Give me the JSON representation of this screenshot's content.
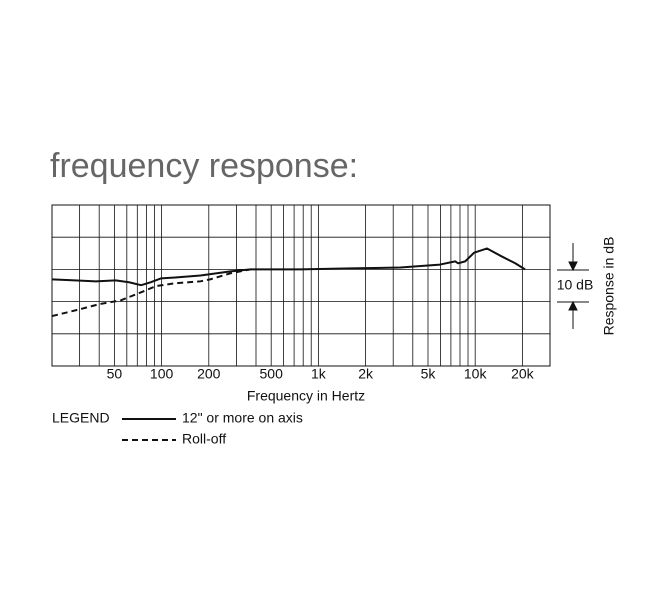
{
  "chart_data": {
    "type": "line",
    "title": "frequency response:",
    "x_label": "Frequency in Hertz",
    "y_label": "Response in dB",
    "scale_annotation": "10 dB",
    "legend_title": "LEGEND",
    "x_scale": "log",
    "grid": true,
    "xlim": [
      20,
      30000
    ],
    "ylim": [
      -30,
      20
    ],
    "xticks": [
      50,
      100,
      200,
      500,
      {
        "value": 1000,
        "label": "1k"
      },
      {
        "value": 2000,
        "label": "2k"
      },
      {
        "value": 5000,
        "label": "5k"
      },
      {
        "value": 10000,
        "label": "10k"
      },
      {
        "value": 20000,
        "label": "20k"
      }
    ],
    "xgrid": [
      30,
      40,
      50,
      60,
      70,
      80,
      90,
      100,
      200,
      300,
      400,
      500,
      600,
      700,
      800,
      900,
      1000,
      2000,
      3000,
      4000,
      5000,
      6000,
      7000,
      8000,
      9000,
      10000,
      20000
    ],
    "ygrid": [
      -20,
      -10,
      0,
      10
    ],
    "series": [
      {
        "name": "12\" or more on axis",
        "color": "#111111",
        "style": "solid",
        "x": [
          20,
          28,
          38,
          51,
          62,
          74,
          85,
          99,
          122,
          177,
          275,
          369,
          767,
          1600,
          3330,
          5960,
          7450,
          7780,
          8630,
          9850,
          11900,
          14400,
          18000,
          20800
        ],
        "values": [
          -3.1,
          -3.4,
          -3.7,
          -3.4,
          -4,
          -4.9,
          -4,
          -2.8,
          -2.5,
          -1.9,
          -0.6,
          0,
          0,
          0.3,
          0.6,
          1.5,
          2.5,
          1.9,
          2.5,
          5.2,
          6.5,
          4.3,
          1.9,
          0
        ]
      },
      {
        "name": "Roll-off",
        "color": "#111111",
        "style": "dashed",
        "x": [
          20,
          30,
          40,
          55,
          74,
          92,
          122,
          177,
          204,
          275,
          369
        ],
        "values": [
          -14.5,
          -12.4,
          -10.8,
          -9.6,
          -7.1,
          -5.2,
          -4.3,
          -3.7,
          -3.1,
          -1.2,
          0
        ]
      }
    ]
  }
}
